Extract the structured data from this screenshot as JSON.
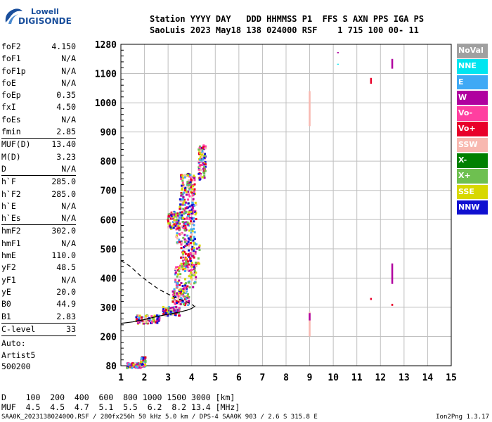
{
  "logo": {
    "line1": "Lowell",
    "line2": "DIGISONDE"
  },
  "header": {
    "line1": "Station YYYY DAY   DDD HHMMSS P1  FFS S AXN PPS IGA PS",
    "line2": "SaoLuis 2023 May18 138 024000 RSF    1 715 100 00- 11"
  },
  "params": [
    {
      "k": "foF2",
      "v": "4.150"
    },
    {
      "k": "foF1",
      "v": "N/A"
    },
    {
      "k": "foF1p",
      "v": "N/A"
    },
    {
      "k": "foE",
      "v": "N/A"
    },
    {
      "k": "foEp",
      "v": "0.35"
    },
    {
      "k": "fxI",
      "v": "4.50"
    },
    {
      "k": "foEs",
      "v": "N/A"
    },
    {
      "k": "fmin",
      "v": "2.85",
      "sep": true
    },
    {
      "k": "MUF(D)",
      "v": "13.40"
    },
    {
      "k": "M(D)",
      "v": "3.23"
    },
    {
      "k": "D",
      "v": "N/A",
      "sep": true
    },
    {
      "k": "h`F",
      "v": "285.0"
    },
    {
      "k": "h`F2",
      "v": "285.0"
    },
    {
      "k": "h`E",
      "v": "N/A"
    },
    {
      "k": "h`Es",
      "v": "N/A",
      "sep": true
    },
    {
      "k": "hmF2",
      "v": "302.0"
    },
    {
      "k": "hmF1",
      "v": "N/A"
    },
    {
      "k": "hmE",
      "v": "110.0"
    },
    {
      "k": "yF2",
      "v": "48.5"
    },
    {
      "k": "yF1",
      "v": "N/A"
    },
    {
      "k": "yE",
      "v": "20.0"
    },
    {
      "k": "B0",
      "v": "44.9"
    },
    {
      "k": "B1",
      "v": "2.83",
      "sep": true
    },
    {
      "k": "C-level",
      "v": "33",
      "sep": true
    }
  ],
  "auto": {
    "line1": "Auto:",
    "line2": "Artist5",
    "line3": "500200"
  },
  "legend": [
    {
      "label": "NoVal",
      "color": "#a0a0a0"
    },
    {
      "label": "NNE",
      "color": "#00e5f0"
    },
    {
      "label": "E",
      "color": "#3fa9f5"
    },
    {
      "label": "W",
      "color": "#b0009f"
    },
    {
      "label": "Vo-",
      "color": "#ff3fa0"
    },
    {
      "label": "Vo+",
      "color": "#e8002a"
    },
    {
      "label": "SSW",
      "color": "#f8b8b0"
    },
    {
      "label": "X-",
      "color": "#008000"
    },
    {
      "label": "X+",
      "color": "#6ec050"
    },
    {
      "label": "SSE",
      "color": "#d8d800"
    },
    {
      "label": "NNW",
      "color": "#1010d0"
    }
  ],
  "muf_table": {
    "row1": "D    100  200  400  600  800 1000 1500 3000 [km]",
    "row2": "MUF  4.5  4.5  4.7  5.1  5.5  6.2  8.2 13.4 [MHz]"
  },
  "footer": "SAA0K_2023138024000.RSF / 280fx256h 50 kHz 5.0 km / DPS-4 SAA0K 903 / 2.6 S 315.8 E",
  "version": "Ion2Png 1.3.17",
  "chart_data": {
    "type": "scatter",
    "x_ticks": [
      1,
      2,
      3,
      4,
      5,
      6,
      7,
      8,
      9,
      10,
      11,
      12,
      13,
      14,
      15
    ],
    "y_ticks": [
      80,
      200,
      300,
      400,
      500,
      600,
      700,
      800,
      900,
      1000,
      1100,
      1280
    ],
    "xlim": [
      1,
      15
    ],
    "ylim": [
      80,
      1280
    ],
    "grid": true,
    "trace": {
      "color": "#000000",
      "x": [
        1.0,
        1.5,
        2.0,
        2.5,
        3.0,
        3.4,
        3.8,
        4.0,
        4.1,
        4.15
      ],
      "y": [
        245,
        250,
        258,
        268,
        276,
        282,
        290,
        296,
        302,
        305
      ]
    },
    "profile": {
      "color": "#000000",
      "x": [
        1.0,
        1.4,
        1.8,
        2.2,
        2.6,
        3.0,
        3.4,
        3.8,
        4.0,
        4.1
      ],
      "y": [
        460,
        440,
        410,
        385,
        362,
        345,
        330,
        318,
        310,
        305
      ]
    },
    "clusters": [
      {
        "x": 2.1,
        "y": 262,
        "w": 1.0,
        "h": 30
      },
      {
        "x": 3.1,
        "y": 290,
        "w": 0.7,
        "h": 30
      },
      {
        "x": 3.5,
        "y": 340,
        "w": 0.7,
        "h": 60
      },
      {
        "x": 3.7,
        "y": 410,
        "w": 0.9,
        "h": 80
      },
      {
        "x": 3.9,
        "y": 480,
        "w": 0.8,
        "h": 80
      },
      {
        "x": 3.7,
        "y": 560,
        "w": 0.8,
        "h": 80
      },
      {
        "x": 3.8,
        "y": 640,
        "w": 0.7,
        "h": 70
      },
      {
        "x": 3.8,
        "y": 720,
        "w": 0.6,
        "h": 80
      },
      {
        "x": 4.4,
        "y": 800,
        "w": 0.3,
        "h": 120
      },
      {
        "x": 3.2,
        "y": 600,
        "w": 0.5,
        "h": 60
      },
      {
        "x": 1.5,
        "y": 85,
        "w": 0.6,
        "h": 20
      },
      {
        "x": 1.9,
        "y": 100,
        "w": 0.2,
        "h": 40
      }
    ],
    "vertical_marks": [
      {
        "x": 9.0,
        "y1": 920,
        "y2": 1040,
        "color": "#f8b8b0"
      },
      {
        "x": 9.0,
        "y1": 200,
        "y2": 285,
        "color": "#f8b8b0"
      },
      {
        "x": 9.0,
        "y1": 255,
        "y2": 280,
        "color": "#b0009f"
      },
      {
        "x": 12.5,
        "y1": 1130,
        "y2": 1190,
        "color": "#b0009f"
      },
      {
        "x": 12.5,
        "y1": 380,
        "y2": 450,
        "color": "#b0009f"
      },
      {
        "x": 11.6,
        "y1": 1065,
        "y2": 1085,
        "color": "#e8002a"
      },
      {
        "x": 10.2,
        "y1": 1225,
        "y2": 1232,
        "color": "#b0009f"
      },
      {
        "x": 10.2,
        "y1": 1155,
        "y2": 1160,
        "color": "#00e5f0"
      },
      {
        "x": 11.6,
        "y1": 325,
        "y2": 332,
        "color": "#e8002a"
      },
      {
        "x": 12.5,
        "y1": 305,
        "y2": 312,
        "color": "#e8002a"
      }
    ]
  }
}
